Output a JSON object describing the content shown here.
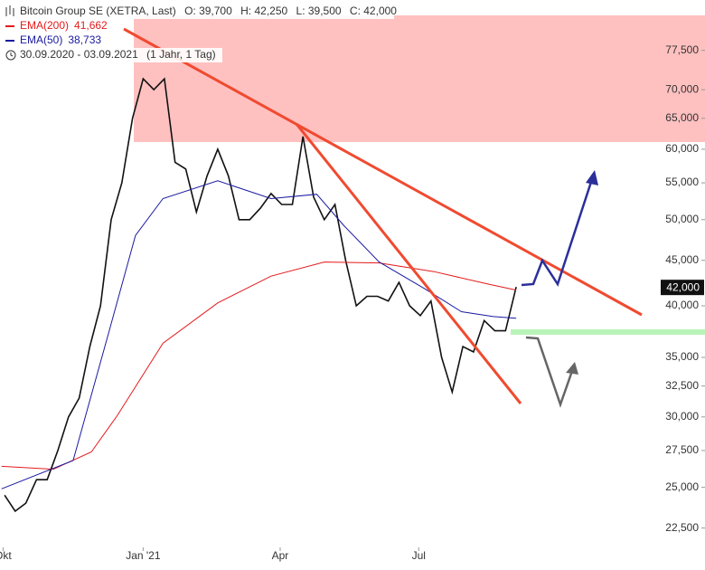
{
  "chart_data": {
    "type": "line",
    "title": "Bitcoin Group SE (XETRA, Last)",
    "quote": [
      "O: 39,700",
      "H: 42,250",
      "L: 39,500",
      "C: 42,000"
    ],
    "date_range": "30.09.2020 - 03.09.2021",
    "period": "(1 Jahr, 1 Tag)",
    "log_y": true,
    "grid": false,
    "xlim": [
      "2020-09-29",
      "2022-01-05"
    ],
    "xticks": [
      {
        "value": "2020-10-01",
        "label": "Okt"
      },
      {
        "value": "2021-01-01",
        "label": "Jan '21"
      },
      {
        "value": "2021-04-01",
        "label": "Apr"
      },
      {
        "value": "2021-07-01",
        "label": "Jul"
      }
    ],
    "ylim": [
      21400,
      88300
    ],
    "yticks": [
      {
        "value": 22500,
        "label": "22,500"
      },
      {
        "value": 25000,
        "label": "25,000"
      },
      {
        "value": 27500,
        "label": "27,500"
      },
      {
        "value": 30000,
        "label": "30,000"
      },
      {
        "value": 32500,
        "label": "32,500"
      },
      {
        "value": 35000,
        "label": "35,000"
      },
      {
        "value": 40000,
        "label": "40,000"
      },
      {
        "value": 45000,
        "label": "45,000"
      },
      {
        "value": 50000,
        "label": "50,000"
      },
      {
        "value": 55000,
        "label": "55,000"
      },
      {
        "value": 60000,
        "label": "60,000"
      },
      {
        "value": 65000,
        "label": "65,000"
      },
      {
        "value": 70000,
        "label": "70,000"
      },
      {
        "value": 77500,
        "label": "77,500"
      }
    ],
    "series": [
      {
        "color": "#111111",
        "last_label": "42,000",
        "x": [
          "2020-10-02",
          "2020-10-09",
          "2020-10-16",
          "2020-10-23",
          "2020-10-30",
          "2020-11-06",
          "2020-11-13",
          "2020-11-20",
          "2020-11-27",
          "2020-12-04",
          "2020-12-11",
          "2020-12-18",
          "2020-12-25",
          "2021-01-01",
          "2021-01-08",
          "2021-01-15",
          "2021-01-22",
          "2021-01-29",
          "2021-02-05",
          "2021-02-12",
          "2021-02-19",
          "2021-02-26",
          "2021-03-05",
          "2021-03-12",
          "2021-03-19",
          "2021-03-26",
          "2021-04-02",
          "2021-04-09",
          "2021-04-16",
          "2021-04-23",
          "2021-04-30",
          "2021-05-07",
          "2021-05-14",
          "2021-05-21",
          "2021-05-28",
          "2021-06-04",
          "2021-06-11",
          "2021-06-18",
          "2021-06-25",
          "2021-07-02",
          "2021-07-09",
          "2021-07-16",
          "2021-07-23",
          "2021-07-30",
          "2021-08-06",
          "2021-08-13",
          "2021-08-20",
          "2021-08-27",
          "2021-09-03"
        ],
        "values": [
          24500,
          23500,
          24000,
          25500,
          25500,
          27500,
          30000,
          31500,
          36000,
          40000,
          50000,
          55000,
          65000,
          72000,
          70000,
          72000,
          58000,
          57000,
          51000,
          56000,
          60000,
          56000,
          50000,
          50000,
          51500,
          53500,
          52000,
          52000,
          62000,
          53000,
          50000,
          52000,
          45000,
          40000,
          41000,
          41000,
          40500,
          42500,
          40000,
          39000,
          40500,
          35000,
          32000,
          36000,
          35500,
          38500,
          37500,
          37500,
          42000
        ]
      },
      {
        "name": "EMA(200)",
        "color": "#e31a1c",
        "last_label": "41,662",
        "x": [
          "2020-09-30",
          "2020-11-03",
          "2020-11-28",
          "2020-12-15",
          "2021-01-14",
          "2021-02-19",
          "2021-03-26",
          "2021-04-30",
          "2021-06-05",
          "2021-07-11",
          "2021-08-16",
          "2021-09-03"
        ],
        "values": [
          26400,
          26200,
          27400,
          30100,
          36300,
          40300,
          43200,
          44800,
          44700,
          43700,
          42300,
          41662
        ]
      },
      {
        "name": "EMA(50)",
        "color": "#1a1aa0",
        "last_label": "38,733",
        "x": [
          "2020-09-30",
          "2020-11-16",
          "2020-12-09",
          "2020-12-27",
          "2021-01-14",
          "2021-02-19",
          "2021-03-26",
          "2021-04-25",
          "2021-05-13",
          "2021-06-05",
          "2021-07-05",
          "2021-07-29",
          "2021-08-19",
          "2021-09-03"
        ],
        "values": [
          24900,
          26800,
          37100,
          48000,
          52800,
          55300,
          52800,
          53400,
          49200,
          44800,
          41800,
          39400,
          38900,
          38733
        ]
      }
    ]
  }
}
